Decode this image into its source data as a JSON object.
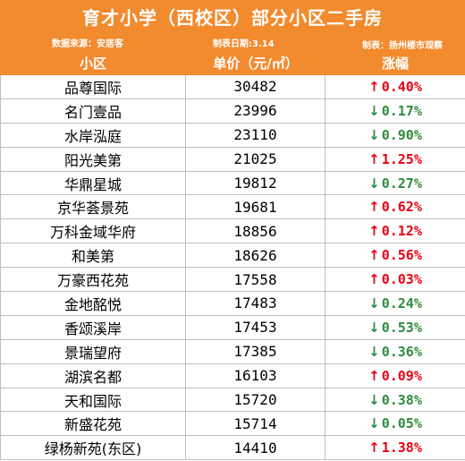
{
  "title": "育才小学（西校区）部分小区二手房",
  "source": "数据来源：安居客",
  "date": "制表日期:3.14",
  "author": "制表：扬州楼市观察",
  "columns": {
    "name": "小区",
    "price": "单价（元/㎡）",
    "change": "涨幅"
  },
  "colors": {
    "header": "#f28a2e",
    "up": "#e60012",
    "down": "#2e8b3e"
  },
  "rows": [
    {
      "name": "品尊国际",
      "price": "30482",
      "dir": "up",
      "arrow": "↑",
      "change": "0.40%"
    },
    {
      "name": "名门壹品",
      "price": "23996",
      "dir": "down",
      "arrow": "↓",
      "change": "0.17%"
    },
    {
      "name": "水岸泓庭",
      "price": "23110",
      "dir": "down",
      "arrow": "↓",
      "change": "0.90%"
    },
    {
      "name": "阳光美第",
      "price": "21025",
      "dir": "up",
      "arrow": "↑",
      "change": "1.25%"
    },
    {
      "name": "华鼎星城",
      "price": "19812",
      "dir": "down",
      "arrow": "↓",
      "change": "0.27%"
    },
    {
      "name": "京华荟景苑",
      "price": "19681",
      "dir": "up",
      "arrow": "↑",
      "change": "0.62%"
    },
    {
      "name": "万科金域华府",
      "price": "18856",
      "dir": "up",
      "arrow": "↑",
      "change": "0.12%"
    },
    {
      "name": "和美第",
      "price": "18626",
      "dir": "up",
      "arrow": "↑",
      "change": "0.56%"
    },
    {
      "name": "万豪西花苑",
      "price": "17558",
      "dir": "up",
      "arrow": "↑",
      "change": "0.03%"
    },
    {
      "name": "金地酩悦",
      "price": "17483",
      "dir": "down",
      "arrow": "↓",
      "change": "0.24%"
    },
    {
      "name": "香颂溪岸",
      "price": "17453",
      "dir": "down",
      "arrow": "↓",
      "change": "0.53%"
    },
    {
      "name": "景瑞望府",
      "price": "17385",
      "dir": "down",
      "arrow": "↓",
      "change": "0.36%"
    },
    {
      "name": "湖滨名都",
      "price": "16103",
      "dir": "up",
      "arrow": "↑",
      "change": "0.09%"
    },
    {
      "name": "天和国际",
      "price": "15720",
      "dir": "down",
      "arrow": "↓",
      "change": "0.38%"
    },
    {
      "name": "新盛花苑",
      "price": "15714",
      "dir": "down",
      "arrow": "↓",
      "change": "0.05%"
    },
    {
      "name": "绿杨新苑(东区)",
      "price": "14410",
      "dir": "up",
      "arrow": "↑",
      "change": "1.38%"
    }
  ]
}
